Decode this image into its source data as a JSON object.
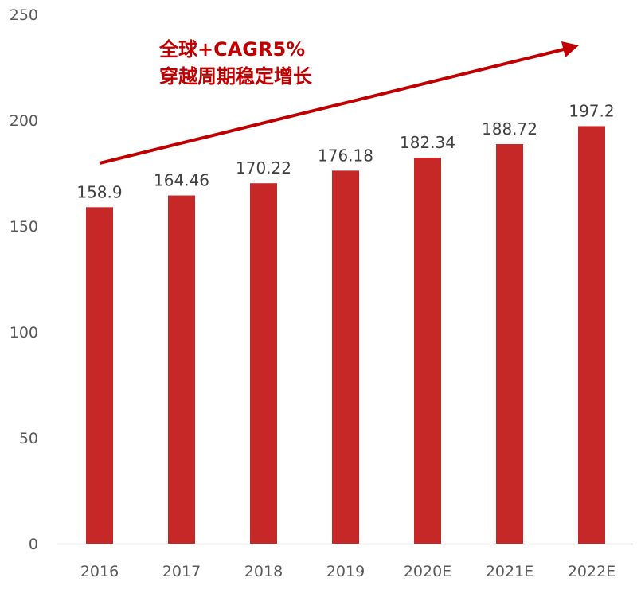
{
  "chart_data": {
    "type": "bar",
    "categories": [
      "2016",
      "2017",
      "2018",
      "2019",
      "2020E",
      "2021E",
      "2022E"
    ],
    "values": [
      158.9,
      164.46,
      170.22,
      176.18,
      182.34,
      188.72,
      197.2
    ],
    "data_labels": [
      "158.9",
      "164.46",
      "170.22",
      "176.18",
      "182.34",
      "188.72",
      "197.2"
    ],
    "title": "",
    "xlabel": "",
    "ylabel": "",
    "ylim": [
      0,
      250
    ],
    "yticks": [
      "0",
      "50",
      "100",
      "150",
      "200",
      "250"
    ],
    "grid": false,
    "legend": "none",
    "bar_color": "#c62828",
    "annotation": {
      "lines": [
        "全球+CAGR5%",
        "穿越周期稳定增长"
      ],
      "color": "#c00000",
      "arrow": "upward trend arrow"
    }
  }
}
